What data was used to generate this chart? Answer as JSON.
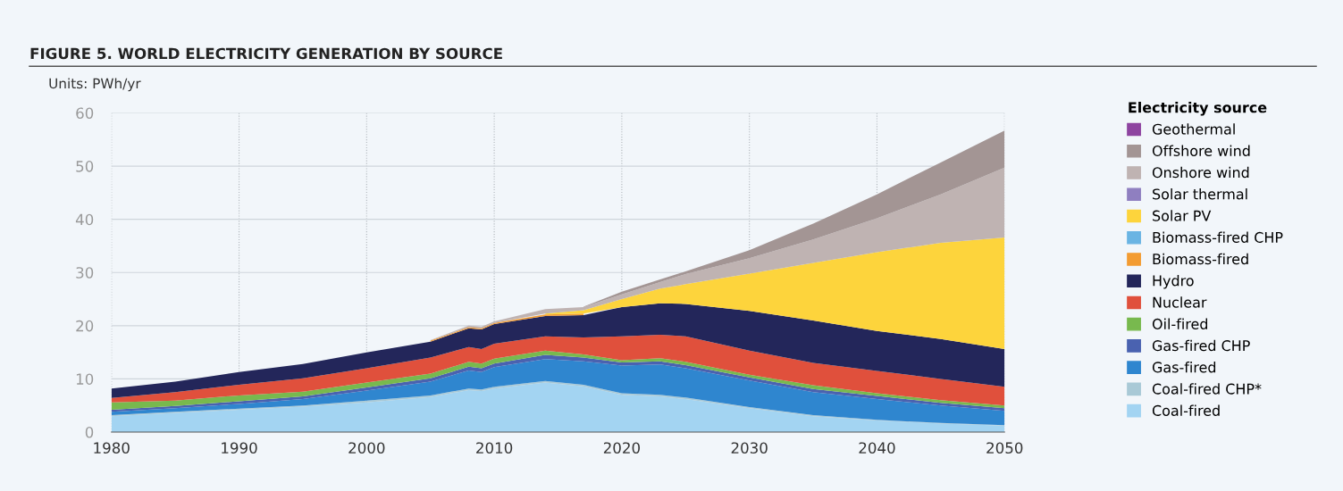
{
  "chart_data": {
    "type": "area",
    "stacked": true,
    "title": "FIGURE 5. WORLD ELECTRICITY GENERATION BY SOURCE",
    "subtitle": "Units: PWh/yr",
    "legend_title": "Electricity source",
    "x": [
      1980,
      1985,
      1990,
      1995,
      2000,
      2005,
      2008,
      2009,
      2010,
      2014,
      2017,
      2020,
      2023,
      2025,
      2030,
      2035,
      2040,
      2045,
      2050
    ],
    "series": [
      {
        "name": "Coal-fired",
        "color": "#a3d4f2",
        "values": [
          3.0,
          3.6,
          4.2,
          4.8,
          5.6,
          6.6,
          7.9,
          7.7,
          8.2,
          9.3,
          8.6,
          7.0,
          6.7,
          6.2,
          4.5,
          3.0,
          2.2,
          1.6,
          1.2
        ]
      },
      {
        "name": "Coal-fired CHP*",
        "color": "#a9c9d6",
        "values": [
          0.2,
          0.2,
          0.2,
          0.2,
          0.3,
          0.3,
          0.3,
          0.3,
          0.3,
          0.3,
          0.3,
          0.3,
          0.3,
          0.3,
          0.2,
          0.2,
          0.1,
          0.1,
          0.1
        ]
      },
      {
        "name": "Gas-fired",
        "color": "#2f86cf",
        "values": [
          0.6,
          0.7,
          0.9,
          1.2,
          1.9,
          2.6,
          3.4,
          3.3,
          3.7,
          4.1,
          4.4,
          5.2,
          5.7,
          5.5,
          5.0,
          4.3,
          3.9,
          3.3,
          2.7
        ]
      },
      {
        "name": "Gas-fired CHP",
        "color": "#4a62b0",
        "values": [
          0.4,
          0.4,
          0.5,
          0.5,
          0.6,
          0.6,
          0.7,
          0.7,
          0.7,
          0.8,
          0.7,
          0.6,
          0.6,
          0.6,
          0.6,
          0.6,
          0.6,
          0.5,
          0.5
        ]
      },
      {
        "name": "Oil-fired",
        "color": "#78b94e",
        "values": [
          1.4,
          1.0,
          1.1,
          0.9,
          0.9,
          0.9,
          0.9,
          0.9,
          0.9,
          0.8,
          0.6,
          0.4,
          0.6,
          0.6,
          0.5,
          0.7,
          0.5,
          0.5,
          0.5
        ]
      },
      {
        "name": "Nuclear",
        "color": "#e0503c",
        "values": [
          0.8,
          1.6,
          2.0,
          2.5,
          2.7,
          3.0,
          2.8,
          2.7,
          2.8,
          2.7,
          3.2,
          4.5,
          4.4,
          4.8,
          4.5,
          4.2,
          4.2,
          4.0,
          3.5
        ]
      },
      {
        "name": "Hydro",
        "color": "#23265a",
        "values": [
          1.8,
          2.0,
          2.4,
          2.7,
          3.0,
          3.0,
          3.5,
          3.7,
          3.7,
          3.8,
          4.2,
          5.5,
          5.9,
          6.1,
          7.5,
          8.0,
          7.5,
          7.5,
          7.1
        ]
      },
      {
        "name": "Biomass-fired",
        "color": "#f39c32",
        "values": [
          null,
          null,
          null,
          null,
          null,
          0.2,
          0.2,
          0.2,
          0.2,
          0.3,
          0.3,
          null,
          null,
          null,
          null,
          null,
          null,
          null,
          null
        ]
      },
      {
        "name": "Biomass-fired CHP",
        "color": "#6ab4e3",
        "values": [
          null,
          null,
          null,
          null,
          null,
          null,
          null,
          null,
          null,
          null,
          null,
          null,
          null,
          null,
          null,
          null,
          null,
          null,
          null
        ]
      },
      {
        "name": "Solar PV",
        "color": "#fdd43c",
        "values": [
          null,
          null,
          null,
          null,
          null,
          null,
          null,
          null,
          null,
          0.2,
          0.6,
          1.5,
          2.8,
          3.7,
          7.0,
          10.8,
          14.8,
          18.1,
          21.0
        ]
      },
      {
        "name": "Solar thermal",
        "color": "#8f7fc0",
        "values": [
          null,
          null,
          null,
          null,
          null,
          null,
          null,
          null,
          null,
          null,
          null,
          null,
          null,
          null,
          null,
          null,
          null,
          null,
          null
        ]
      },
      {
        "name": "Onshore wind",
        "color": "#bfb3b2",
        "values": [
          null,
          null,
          null,
          null,
          null,
          0.1,
          0.3,
          0.3,
          0.3,
          0.8,
          0.6,
          0.9,
          1.2,
          1.9,
          2.9,
          4.4,
          6.4,
          9.1,
          13.1
        ]
      },
      {
        "name": "Offshore wind",
        "color": "#a39594",
        "values": [
          null,
          null,
          null,
          null,
          null,
          null,
          null,
          null,
          null,
          null,
          0.1,
          0.5,
          0.5,
          0.5,
          1.5,
          3.0,
          4.5,
          6.0,
          7.0
        ]
      },
      {
        "name": "Geothermal",
        "color": "#8e44a0",
        "values": [
          null,
          null,
          null,
          null,
          null,
          null,
          null,
          null,
          null,
          null,
          null,
          null,
          null,
          null,
          null,
          null,
          null,
          null,
          null
        ]
      }
    ],
    "xlim": [
      1980,
      2050
    ],
    "xticks": [
      1980,
      1990,
      2000,
      2010,
      2020,
      2030,
      2040,
      2050
    ],
    "ylim": [
      0,
      60
    ],
    "yticks": [
      0,
      10,
      20,
      30,
      40,
      50,
      60
    ],
    "grid": true,
    "legend": "right"
  }
}
